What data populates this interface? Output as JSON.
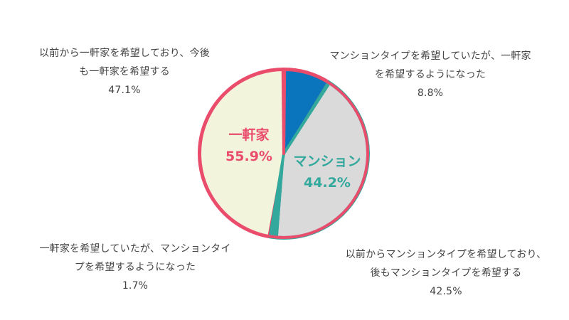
{
  "colors": {
    "detached_border": "#EA4C6C",
    "detached_fill": "#F3F4DC",
    "mansion_border": "#33A89D",
    "mansion_fill": "#DADADA",
    "switched_fill": "#0A74BD",
    "switched_border": "#EA4C6C"
  },
  "chart_data": {
    "type": "pie",
    "title": "",
    "start_angle_deg": 0,
    "direction": "clockwise",
    "slices": [
      {
        "key": "to_detached",
        "label_lines": [
          "マンションタイプを希望していたが、一軒家",
          "を希望するようになった"
        ],
        "value": 8.8,
        "value_label": "8.8%",
        "group": "detached"
      },
      {
        "key": "mansion_stay",
        "label_lines": [
          "以前からマンションタイプを希望しており、",
          "後もマンションタイプを希望する"
        ],
        "value": 42.5,
        "value_label": "42.5%",
        "group": "mansion"
      },
      {
        "key": "to_mansion",
        "label_lines": [
          "一軒家を希望していたが、マンションタイ",
          "プを希望するようになった"
        ],
        "value": 1.7,
        "value_label": "1.7%",
        "group": "mansion"
      },
      {
        "key": "detached_stay",
        "label_lines": [
          "以前から一軒家を希望しており、今後",
          "も一軒家を希望する"
        ],
        "value": 47.1,
        "value_label": "47.1%",
        "group": "detached"
      }
    ],
    "groups": [
      {
        "key": "detached",
        "name": "一軒家",
        "value": 55.9,
        "value_label": "55.9%"
      },
      {
        "key": "mansion",
        "name": "マンション",
        "value": 44.2,
        "value_label": "44.2%"
      }
    ]
  }
}
